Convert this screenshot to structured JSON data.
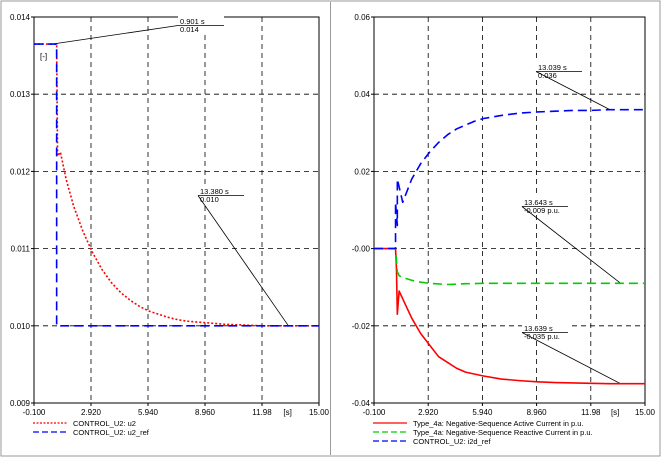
{
  "chart_data": [
    {
      "type": "line",
      "title": "",
      "xlabel": "[s]",
      "ylabel": "[-]",
      "xlim": [
        -0.1,
        15.0
      ],
      "ylim": [
        0.009,
        0.014
      ],
      "x_ticks": [
        "-0.100",
        "2.920",
        "5.940",
        "8.960",
        "11.98",
        "15.00"
      ],
      "y_ticks": [
        "0.009",
        "0.010",
        "0.011",
        "0.012",
        "0.013",
        "0.014"
      ],
      "grid": true,
      "legend_position": "bottom-left",
      "series": [
        {
          "name": "CONTROL_U2: u2",
          "color": "#ff0000",
          "style": "dotted",
          "x": [
            -0.1,
            1.1,
            1.15,
            1.3,
            1.6,
            2.0,
            2.5,
            3.0,
            3.5,
            4.0,
            4.5,
            5.0,
            5.5,
            6.0,
            6.5,
            7.0,
            7.5,
            8.0,
            8.5,
            9.0,
            9.5,
            10.0,
            11.0,
            12.0,
            13.0,
            14.0,
            15.0
          ],
          "y": [
            0.01365,
            0.01365,
            0.0122,
            0.01225,
            0.0119,
            0.01155,
            0.01122,
            0.01095,
            0.01073,
            0.01056,
            0.01043,
            0.01033,
            0.01025,
            0.01019,
            0.01015,
            0.01011,
            0.01008,
            0.01006,
            0.01005,
            0.01004,
            0.01003,
            0.01002,
            0.01001,
            0.01,
            0.01,
            0.01,
            0.01
          ]
        },
        {
          "name": "CONTROL_U2: u2_ref",
          "color": "#0000ff",
          "style": "dashed",
          "x": [
            -0.1,
            1.1,
            1.1,
            15.0
          ],
          "y": [
            0.01365,
            0.01365,
            0.01,
            0.01
          ]
        }
      ],
      "annotations": [
        {
          "label": "0.901 s",
          "value": "0.014",
          "x": 0.901,
          "y": 0.01365
        },
        {
          "label": "13.380 s",
          "value": "0.010",
          "x": 13.38,
          "y": 0.01
        }
      ]
    },
    {
      "type": "line",
      "title": "",
      "xlabel": "[s]",
      "ylabel": "",
      "xlim": [
        -0.1,
        15.0
      ],
      "ylim": [
        -0.04,
        0.06
      ],
      "x_ticks": [
        "-0.100",
        "2.920",
        "5.940",
        "8.960",
        "11.98",
        "15.00"
      ],
      "y_ticks": [
        "-0.04",
        "-0.02",
        "-0.00",
        "0.02",
        "0.04",
        "0.06"
      ],
      "grid": true,
      "legend_position": "bottom-left",
      "series": [
        {
          "name": "Type_4a: Negative-Sequence Active Current in p.u.",
          "color": "#ff0000",
          "style": "solid",
          "x": [
            -0.1,
            1.1,
            1.15,
            1.2,
            1.3,
            1.5,
            2.0,
            2.5,
            3.0,
            3.5,
            4.0,
            4.5,
            5.0,
            6.0,
            7.0,
            8.0,
            9.0,
            10.0,
            11.0,
            12.0,
            13.0,
            14.0,
            15.0
          ],
          "y": [
            0.0,
            0.0,
            -0.005,
            -0.017,
            -0.011,
            -0.013,
            -0.018,
            -0.022,
            -0.025,
            -0.028,
            -0.0295,
            -0.031,
            -0.032,
            -0.033,
            -0.0338,
            -0.0342,
            -0.0345,
            -0.0347,
            -0.0348,
            -0.0349,
            -0.035,
            -0.035,
            -0.035
          ]
        },
        {
          "name": "Type_4a: Negative-Sequence Reactive Current in p.u.",
          "color": "#00cc00",
          "style": "dashed",
          "x": [
            -0.1,
            1.1,
            1.15,
            1.2,
            1.3,
            1.5,
            2.0,
            2.5,
            3.0,
            4.0,
            5.0,
            6.0,
            8.0,
            10.0,
            12.0,
            13.0,
            15.0
          ],
          "y": [
            0.0,
            0.0,
            -0.003,
            -0.006,
            -0.007,
            -0.0075,
            -0.0082,
            -0.0087,
            -0.009,
            -0.0093,
            -0.0091,
            -0.009,
            -0.009,
            -0.009,
            -0.009,
            -0.009,
            -0.009
          ]
        },
        {
          "name": "CONTROL_U2: i2d_ref",
          "color": "#0000ff",
          "style": "dashed",
          "x": [
            -0.1,
            1.1,
            1.1,
            1.2,
            1.2,
            1.5,
            2.0,
            2.5,
            3.0,
            3.5,
            4.0,
            4.5,
            5.0,
            5.5,
            6.0,
            7.0,
            8.0,
            9.0,
            10.0,
            11.0,
            12.0,
            13.0,
            14.0,
            15.0
          ],
          "y": [
            0.0,
            0.0,
            0.012,
            0.006,
            0.018,
            0.012,
            0.018,
            0.022,
            0.025,
            0.0275,
            0.0295,
            0.031,
            0.032,
            0.033,
            0.0337,
            0.0345,
            0.0351,
            0.0354,
            0.0356,
            0.0358,
            0.0358,
            0.036,
            0.036,
            0.036
          ]
        }
      ],
      "annotations": [
        {
          "label": "13.039 s",
          "value": "0.036",
          "x": 13.039,
          "y": 0.036
        },
        {
          "label": "13.643 s",
          "value": "-0.009 p.u.",
          "x": 13.643,
          "y": -0.009
        },
        {
          "label": "13.639 s",
          "value": "-0.035 p.u.",
          "x": 13.639,
          "y": -0.035
        }
      ]
    }
  ]
}
